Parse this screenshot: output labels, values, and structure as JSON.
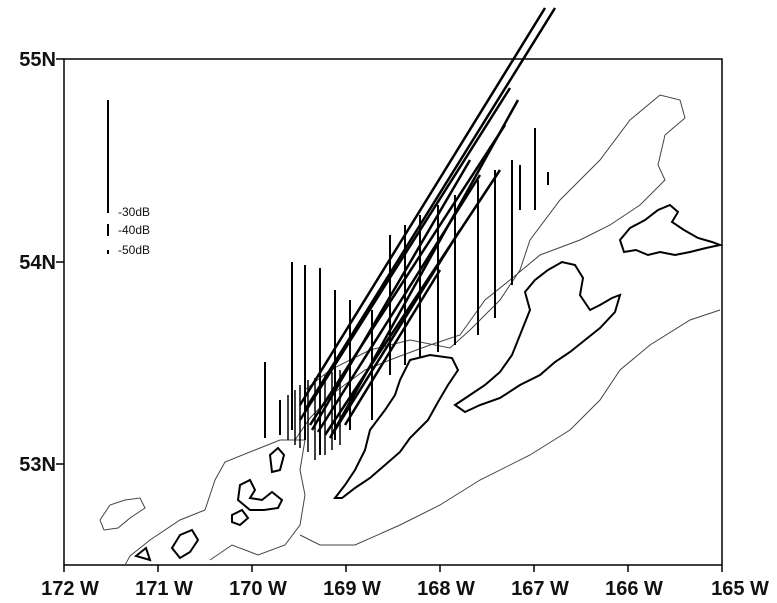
{
  "map": {
    "axes": {
      "x_ticks": [
        "172 W",
        "171 W",
        "170 W",
        "169 W",
        "168 W",
        "167 W",
        "166 W",
        "165 W"
      ],
      "y_ticks": [
        "55N",
        "54N",
        "53N"
      ]
    },
    "legend": {
      "items": [
        {
          "label": "-30dB",
          "level_db": -30
        },
        {
          "label": "-40dB",
          "level_db": -40
        },
        {
          "label": "-50dB",
          "level_db": -50
        }
      ]
    },
    "extent": {
      "lon_west": 172,
      "lon_east": 165,
      "lat_south": 52.5,
      "lat_north": 55
    },
    "colors": {
      "background": "#ffffff",
      "coast": "#000000",
      "contour": "#333333",
      "tracks": "#000000"
    }
  }
}
